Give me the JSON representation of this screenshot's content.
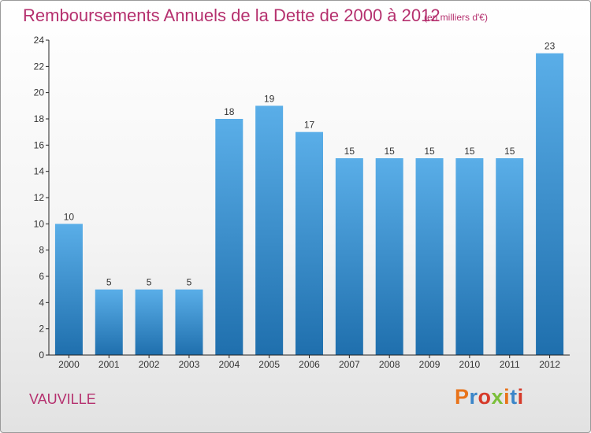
{
  "header": {
    "title": "Remboursements Annuels de la Dette de 2000 à 2012",
    "unit": "(en milliers d'€)"
  },
  "footer": {
    "commune": "VAUVILLE",
    "logo_text": "Proxiti"
  },
  "colors": {
    "title": "#b5306e",
    "bar_top": "#5aaee8",
    "bar_bottom": "#1f6fad",
    "axis": "#222222",
    "logo": [
      "#e8731a",
      "#3b86c9",
      "#d63a2a",
      "#7bbf3a",
      "#e8731a",
      "#3b86c9",
      "#d63a2a"
    ]
  },
  "chart_data": {
    "type": "bar",
    "title": "Remboursements Annuels de la Dette de 2000 à 2012",
    "subtitle": "(en milliers d'€)",
    "categories": [
      "2000",
      "2001",
      "2002",
      "2003",
      "2004",
      "2005",
      "2006",
      "2007",
      "2008",
      "2009",
      "2010",
      "2011",
      "2012"
    ],
    "values": [
      10,
      5,
      5,
      5,
      18,
      19,
      17,
      15,
      15,
      15,
      15,
      15,
      23
    ],
    "ylim": [
      0,
      24
    ],
    "yticks": [
      0,
      2,
      4,
      6,
      8,
      10,
      12,
      14,
      16,
      18,
      20,
      22,
      24
    ],
    "xlabel": "",
    "ylabel": "",
    "grid": false,
    "legend": "none",
    "data_labels": true
  }
}
